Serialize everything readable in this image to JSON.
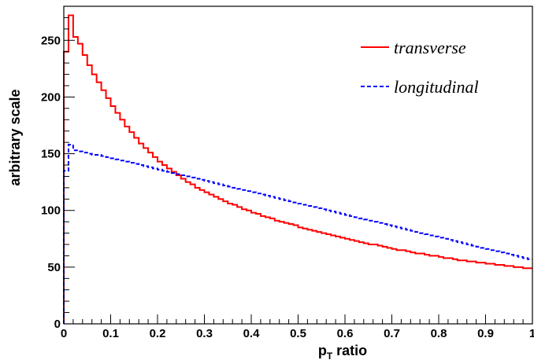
{
  "chart_data": {
    "type": "line",
    "title": "",
    "xlabel": {
      "main": "p",
      "subscript": "T",
      "rest": " ratio"
    },
    "ylabel": "arbitrary scale",
    "xlim": [
      0,
      1
    ],
    "ylim": [
      0,
      280
    ],
    "x_ticks": [
      "0",
      "0.1",
      "0.2",
      "0.3",
      "0.4",
      "0.5",
      "0.6",
      "0.7",
      "0.8",
      "0.9",
      "1"
    ],
    "y_ticks": [
      "0",
      "50",
      "100",
      "150",
      "200",
      "250"
    ],
    "bin_width": 0.01,
    "legend_position": "top-right",
    "series": [
      {
        "name": "transverse",
        "color": "#ff0000",
        "style": "solid",
        "values": [
          240,
          272,
          253,
          247,
          237,
          228,
          220,
          213,
          206,
          199,
          192,
          186,
          180,
          174,
          169,
          164,
          159,
          155,
          151,
          147,
          143,
          140,
          137,
          134,
          131,
          128,
          125,
          123,
          120,
          118,
          116,
          114,
          112,
          110,
          108,
          106,
          105,
          103,
          101,
          100,
          98,
          97,
          95,
          94,
          93,
          91,
          90,
          89,
          88,
          87,
          85,
          84,
          83,
          82,
          81,
          80,
          79,
          78,
          77,
          76,
          75,
          74,
          73,
          72,
          71,
          70,
          70,
          69,
          68,
          67,
          66,
          65,
          65,
          64,
          63,
          62,
          62,
          61,
          60,
          60,
          59,
          58,
          58,
          57,
          56,
          56,
          55,
          55,
          54,
          54,
          53,
          53,
          52,
          52,
          51,
          51,
          50,
          50,
          49,
          49
        ]
      },
      {
        "name": "longitudinal",
        "color": "#0000ff",
        "style": "dashed",
        "values": [
          135,
          158,
          153,
          152,
          151,
          150,
          149,
          149,
          148,
          147,
          146,
          145,
          144,
          143,
          142,
          141,
          140,
          139,
          138,
          137,
          136,
          135,
          134,
          133,
          132,
          131,
          130,
          129,
          128,
          127,
          126,
          125,
          124,
          123,
          122,
          121,
          120,
          119,
          118,
          117,
          116,
          115,
          114,
          113,
          112,
          111,
          110,
          109,
          108,
          107,
          106,
          105,
          104,
          103,
          102,
          101,
          100,
          99,
          98,
          97,
          96,
          95,
          94,
          93,
          92,
          91,
          90,
          89,
          88,
          87,
          86,
          85,
          84,
          83,
          82,
          81,
          80,
          79,
          78,
          77,
          76,
          75,
          74,
          73,
          72,
          71,
          70,
          69,
          68,
          67,
          66,
          65,
          64,
          63,
          62,
          61,
          60,
          59,
          58,
          57
        ]
      }
    ]
  }
}
